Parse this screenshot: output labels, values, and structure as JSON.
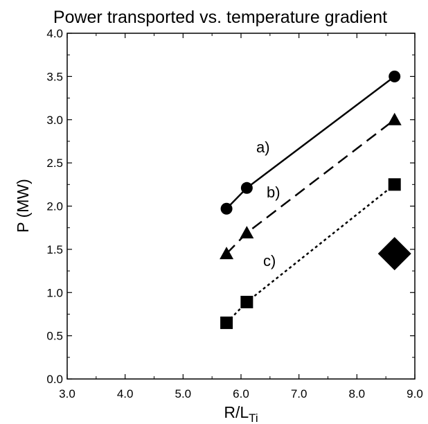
{
  "chart_data": {
    "type": "line",
    "title": "Power transported vs. temperature gradient",
    "xlabel": "R/L",
    "xlabel_subscript": "Ti",
    "ylabel": "P (MW)",
    "xlim": [
      3.0,
      9.0
    ],
    "ylim": [
      0.0,
      4.0
    ],
    "x_ticks": [
      "3.0",
      "4.0",
      "5.0",
      "6.0",
      "7.0",
      "8.0",
      "9.0"
    ],
    "y_ticks": [
      "0.0",
      "0.5",
      "1.0",
      "1.5",
      "2.0",
      "2.5",
      "3.0",
      "3.5",
      "4.0"
    ],
    "grid": false,
    "series": [
      {
        "name": "a)",
        "marker": "circle",
        "line_style": "solid",
        "x": [
          5.75,
          6.1,
          8.65
        ],
        "y": [
          1.97,
          2.21,
          3.5
        ]
      },
      {
        "name": "b)",
        "marker": "triangle",
        "line_style": "dashed",
        "x": [
          5.75,
          6.1,
          8.65
        ],
        "y": [
          1.45,
          1.69,
          3.0
        ]
      },
      {
        "name": "c)",
        "marker": "square",
        "line_style": "dotted",
        "x": [
          5.75,
          6.1,
          8.65
        ],
        "y": [
          0.65,
          0.89,
          2.25
        ]
      }
    ],
    "extra_points": [
      {
        "marker": "diamond",
        "x": 8.65,
        "y": 1.45
      }
    ],
    "colors": {
      "ink": "#000000",
      "background": "#ffffff"
    }
  }
}
